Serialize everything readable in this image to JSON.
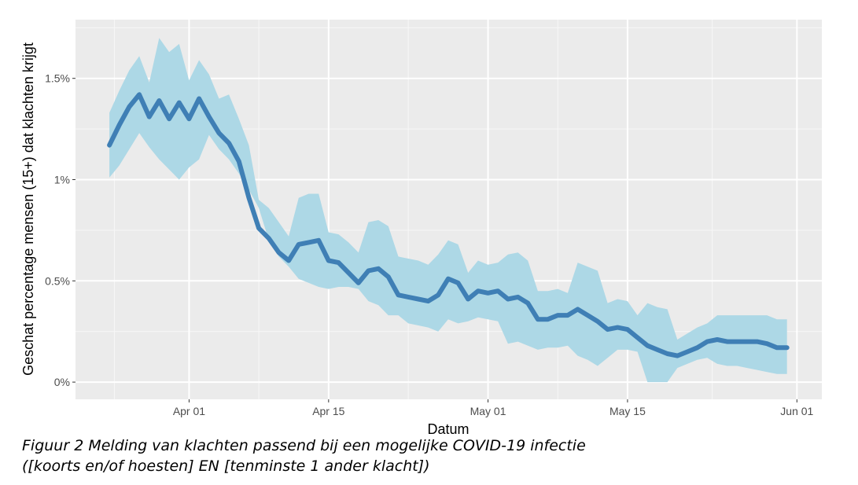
{
  "chart_data": {
    "type": "area",
    "title": "",
    "xlabel": "Datum",
    "ylabel": "Geschat percentage mensen (15+) dat klachten krijgt",
    "start_date": "Mar 24",
    "x_ticks": [
      {
        "label": "Apr 01",
        "day": 8
      },
      {
        "label": "Apr 15",
        "day": 22
      },
      {
        "label": "May 01",
        "day": 38
      },
      {
        "label": "May 15",
        "day": 52
      },
      {
        "label": "Jun 01",
        "day": 69
      }
    ],
    "y_ticks": [
      {
        "label": "0%",
        "value": 0
      },
      {
        "label": "0.5%",
        "value": 0.5
      },
      {
        "label": "1%",
        "value": 1
      },
      {
        "label": "1.5%",
        "value": 1.5
      }
    ],
    "xlim_days": [
      -3.4,
      71.5
    ],
    "ylim": [
      -0.085,
      1.79
    ],
    "grid": true,
    "series": [
      {
        "name": "estimate",
        "color": "#3f7fb5",
        "values": [
          1.17,
          1.27,
          1.36,
          1.42,
          1.31,
          1.39,
          1.3,
          1.38,
          1.3,
          1.4,
          1.31,
          1.23,
          1.18,
          1.09,
          0.91,
          0.76,
          0.71,
          0.64,
          0.6,
          0.68,
          0.69,
          0.7,
          0.6,
          0.59,
          0.54,
          0.49,
          0.55,
          0.56,
          0.52,
          0.43,
          0.42,
          0.41,
          0.4,
          0.43,
          0.51,
          0.49,
          0.41,
          0.45,
          0.44,
          0.45,
          0.41,
          0.42,
          0.39,
          0.31,
          0.31,
          0.33,
          0.33,
          0.36,
          0.33,
          0.3,
          0.26,
          0.27,
          0.26,
          0.22,
          0.18,
          0.16,
          0.14,
          0.13,
          0.15,
          0.17,
          0.2,
          0.21,
          0.2,
          0.2,
          0.2,
          0.2,
          0.19,
          0.17,
          0.17
        ]
      },
      {
        "name": "upper",
        "color": "#add8e6",
        "values": [
          1.33,
          1.44,
          1.54,
          1.61,
          1.48,
          1.7,
          1.63,
          1.67,
          1.49,
          1.59,
          1.52,
          1.4,
          1.42,
          1.3,
          1.17,
          0.9,
          0.86,
          0.79,
          0.72,
          0.91,
          0.93,
          0.93,
          0.74,
          0.73,
          0.69,
          0.64,
          0.79,
          0.8,
          0.77,
          0.62,
          0.61,
          0.6,
          0.58,
          0.63,
          0.7,
          0.68,
          0.54,
          0.6,
          0.58,
          0.59,
          0.63,
          0.64,
          0.6,
          0.45,
          0.45,
          0.46,
          0.44,
          0.59,
          0.57,
          0.55,
          0.39,
          0.41,
          0.4,
          0.33,
          0.39,
          0.37,
          0.36,
          0.21,
          0.24,
          0.27,
          0.29,
          0.33,
          0.33,
          0.33,
          0.33,
          0.33,
          0.33,
          0.31,
          0.31
        ]
      },
      {
        "name": "lower",
        "color": "#add8e6",
        "values": [
          1.01,
          1.07,
          1.15,
          1.23,
          1.16,
          1.1,
          1.05,
          1.0,
          1.06,
          1.1,
          1.22,
          1.15,
          1.1,
          1.03,
          0.95,
          0.86,
          0.7,
          0.62,
          0.57,
          0.51,
          0.49,
          0.47,
          0.46,
          0.47,
          0.47,
          0.46,
          0.4,
          0.38,
          0.33,
          0.33,
          0.29,
          0.28,
          0.27,
          0.25,
          0.31,
          0.29,
          0.3,
          0.32,
          0.31,
          0.3,
          0.19,
          0.2,
          0.18,
          0.16,
          0.17,
          0.17,
          0.18,
          0.13,
          0.11,
          0.08,
          0.12,
          0.16,
          0.16,
          0.15,
          0.0,
          0.0,
          0.0,
          0.07,
          0.09,
          0.11,
          0.12,
          0.09,
          0.08,
          0.08,
          0.07,
          0.06,
          0.05,
          0.04,
          0.04
        ]
      }
    ]
  },
  "caption": {
    "line1": "Figuur 2 Melding van klachten passend bij een mogelijke COVID-19 infectie",
    "line2": "([koorts en/of hoesten] EN [tenminste 1 ander klacht])"
  }
}
